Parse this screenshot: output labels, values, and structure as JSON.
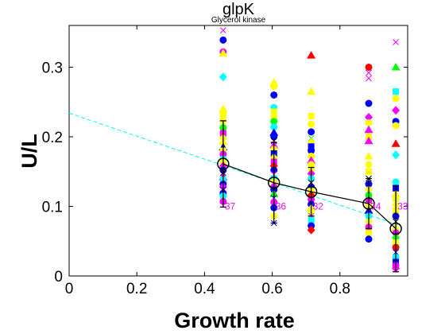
{
  "chart_data": {
    "type": "scatter",
    "title": "glpK",
    "subtitle": "Glycerol kinase",
    "xlabel": "Growth rate",
    "ylabel": "U/L",
    "xlim": [
      0,
      1.0
    ],
    "ylim": [
      0,
      0.36
    ],
    "x_ticks": [
      0,
      0.2,
      0.4,
      0.6,
      0.8
    ],
    "x_tick_labels": [
      "0",
      "0.2",
      "0.4",
      "0.6",
      "0.8"
    ],
    "y_ticks": [
      0,
      0.1,
      0.2,
      0.3
    ],
    "y_tick_labels": [
      "0",
      "0.1",
      "0.2",
      "0.3"
    ],
    "grid": false,
    "legend": "none",
    "trend_line": {
      "style": "dashed",
      "color": "#00ffff",
      "points": [
        [
          0,
          0.234
        ],
        [
          0.98,
          0.072
        ]
      ]
    },
    "mean_series": {
      "style": "solid",
      "color": "#000000",
      "marker": "circle-open",
      "x": [
        0.455,
        0.605,
        0.715,
        0.885,
        0.965
      ],
      "y": [
        0.161,
        0.134,
        0.121,
        0.104,
        0.068
      ],
      "error": [
        0.062,
        0.058,
        0.035,
        0.036,
        0.062
      ]
    },
    "group_counts": [
      {
        "x": 0.455,
        "label": "37"
      },
      {
        "x": 0.605,
        "label": "36"
      },
      {
        "x": 0.715,
        "label": "32"
      },
      {
        "x": 0.885,
        "label": "34"
      },
      {
        "x": 0.965,
        "label": "33"
      }
    ],
    "series": [
      {
        "x": 0.455,
        "points": [
          {
            "y": 0.353,
            "marker": "x",
            "color": "#ff00ff"
          },
          {
            "y": 0.339,
            "marker": "circle",
            "color": "#0000ff"
          },
          {
            "y": 0.322,
            "marker": "circle",
            "color": "#ff00ff"
          },
          {
            "y": 0.32,
            "marker": "triangle",
            "color": "#ffff00"
          },
          {
            "y": 0.286,
            "marker": "diamond",
            "color": "#00ffff"
          },
          {
            "y": 0.24,
            "marker": "triangle",
            "color": "#ffff00"
          },
          {
            "y": 0.234,
            "marker": "circle",
            "color": "#ffff00"
          },
          {
            "y": 0.229,
            "marker": "square",
            "color": "#ffff00"
          },
          {
            "y": 0.222,
            "marker": "diamond",
            "color": "#ffff00"
          },
          {
            "y": 0.213,
            "marker": "circle",
            "color": "#00ff00"
          },
          {
            "y": 0.205,
            "marker": "square",
            "color": "#ff00ff"
          },
          {
            "y": 0.198,
            "marker": "diamond",
            "color": "#ffff00"
          },
          {
            "y": 0.19,
            "marker": "circle",
            "color": "#ffff00"
          },
          {
            "y": 0.185,
            "marker": "triangle",
            "color": "#0000ff"
          },
          {
            "y": 0.18,
            "marker": "square",
            "color": "#ffff00"
          },
          {
            "y": 0.175,
            "marker": "circle",
            "color": "#ff00ff"
          },
          {
            "y": 0.168,
            "marker": "circle",
            "color": "#00ffff"
          },
          {
            "y": 0.164,
            "marker": "square",
            "color": "#ffff00"
          },
          {
            "y": 0.158,
            "marker": "diamond",
            "color": "#ff00ff"
          },
          {
            "y": 0.152,
            "marker": "circle",
            "color": "#0000ff"
          },
          {
            "y": 0.148,
            "marker": "x",
            "color": "#000000"
          },
          {
            "y": 0.142,
            "marker": "triangle",
            "color": "#ff00ff"
          },
          {
            "y": 0.138,
            "marker": "square",
            "color": "#00ffff"
          },
          {
            "y": 0.132,
            "marker": "circle",
            "color": "#0000ff"
          },
          {
            "y": 0.128,
            "marker": "diamond",
            "color": "#ff00ff"
          },
          {
            "y": 0.124,
            "marker": "x",
            "color": "#0000ff"
          },
          {
            "y": 0.119,
            "marker": "circle",
            "color": "#0000ff"
          },
          {
            "y": 0.115,
            "marker": "circle",
            "color": "#00ffff"
          },
          {
            "y": 0.107,
            "marker": "circle",
            "color": "#ff00ff"
          }
        ]
      },
      {
        "x": 0.605,
        "points": [
          {
            "y": 0.278,
            "marker": "triangle",
            "color": "#ffff00"
          },
          {
            "y": 0.272,
            "marker": "circle",
            "color": "#ffff00"
          },
          {
            "y": 0.26,
            "marker": "circle",
            "color": "#0000ff"
          },
          {
            "y": 0.242,
            "marker": "circle",
            "color": "#00ffff"
          },
          {
            "y": 0.236,
            "marker": "square",
            "color": "#ffff00"
          },
          {
            "y": 0.228,
            "marker": "circle",
            "color": "#ffff00"
          },
          {
            "y": 0.222,
            "marker": "circle",
            "color": "#00ff00"
          },
          {
            "y": 0.214,
            "marker": "circle",
            "color": "#00ffff"
          },
          {
            "y": 0.206,
            "marker": "triangle",
            "color": "#0000ff"
          },
          {
            "y": 0.2,
            "marker": "circle",
            "color": "#0000ff"
          },
          {
            "y": 0.194,
            "marker": "x",
            "color": "#000000"
          },
          {
            "y": 0.188,
            "marker": "triangle",
            "color": "#ff00ff"
          },
          {
            "y": 0.182,
            "marker": "circle",
            "color": "#ffff00"
          },
          {
            "y": 0.176,
            "marker": "square",
            "color": "#0000ff"
          },
          {
            "y": 0.17,
            "marker": "diamond",
            "color": "#ffff00"
          },
          {
            "y": 0.164,
            "marker": "square",
            "color": "#ff00ff"
          },
          {
            "y": 0.158,
            "marker": "diamond",
            "color": "#ff0000"
          },
          {
            "y": 0.152,
            "marker": "circle",
            "color": "#0000ff"
          },
          {
            "y": 0.146,
            "marker": "x",
            "color": "#ff00ff"
          },
          {
            "y": 0.14,
            "marker": "square",
            "color": "#00ffff"
          },
          {
            "y": 0.135,
            "marker": "circle",
            "color": "#ffff00"
          },
          {
            "y": 0.129,
            "marker": "diamond",
            "color": "#ff00ff"
          },
          {
            "y": 0.124,
            "marker": "circle",
            "color": "#0000ff"
          },
          {
            "y": 0.118,
            "marker": "triangle",
            "color": "#00ff00"
          },
          {
            "y": 0.112,
            "marker": "x",
            "color": "#0000ff"
          },
          {
            "y": 0.106,
            "marker": "circle",
            "color": "#ff00ff"
          },
          {
            "y": 0.098,
            "marker": "circle",
            "color": "#0000ff"
          },
          {
            "y": 0.086,
            "marker": "circle",
            "color": "#ffff00"
          },
          {
            "y": 0.076,
            "marker": "x",
            "color": "#0000ff"
          }
        ]
      },
      {
        "x": 0.715,
        "points": [
          {
            "y": 0.317,
            "marker": "triangle",
            "color": "#ff0000"
          },
          {
            "y": 0.265,
            "marker": "triangle",
            "color": "#ffff00"
          },
          {
            "y": 0.23,
            "marker": "square",
            "color": "#ffff00"
          },
          {
            "y": 0.218,
            "marker": "circle",
            "color": "#ffff00"
          },
          {
            "y": 0.207,
            "marker": "circle",
            "color": "#0000ff"
          },
          {
            "y": 0.198,
            "marker": "x",
            "color": "#00ff00"
          },
          {
            "y": 0.192,
            "marker": "diamond",
            "color": "#ffff00"
          },
          {
            "y": 0.186,
            "marker": "square",
            "color": "#0000ff"
          },
          {
            "y": 0.18,
            "marker": "circle",
            "color": "#0000ff"
          },
          {
            "y": 0.172,
            "marker": "circle",
            "color": "#ffff00"
          },
          {
            "y": 0.166,
            "marker": "triangle",
            "color": "#ff00ff"
          },
          {
            "y": 0.16,
            "marker": "circle",
            "color": "#ffff00"
          },
          {
            "y": 0.154,
            "marker": "square",
            "color": "#ffff00"
          },
          {
            "y": 0.147,
            "marker": "diamond",
            "color": "#ff00ff"
          },
          {
            "y": 0.14,
            "marker": "circle",
            "color": "#00ffff"
          },
          {
            "y": 0.134,
            "marker": "x",
            "color": "#000000"
          },
          {
            "y": 0.128,
            "marker": "circle",
            "color": "#0000ff"
          },
          {
            "y": 0.122,
            "marker": "square",
            "color": "#ffff00"
          },
          {
            "y": 0.116,
            "marker": "diamond",
            "color": "#ff0000"
          },
          {
            "y": 0.11,
            "marker": "circle",
            "color": "#ff00ff"
          },
          {
            "y": 0.103,
            "marker": "circle",
            "color": "#0000ff"
          },
          {
            "y": 0.098,
            "marker": "triangle",
            "color": "#ffff00"
          },
          {
            "y": 0.092,
            "marker": "circle",
            "color": "#ffff00"
          },
          {
            "y": 0.086,
            "marker": "x",
            "color": "#ff00ff"
          },
          {
            "y": 0.08,
            "marker": "square",
            "color": "#00ffff"
          },
          {
            "y": 0.072,
            "marker": "circle",
            "color": "#0000ff"
          },
          {
            "y": 0.066,
            "marker": "diamond",
            "color": "#ff0000"
          }
        ]
      },
      {
        "x": 0.885,
        "points": [
          {
            "y": 0.3,
            "marker": "circle",
            "color": "#ff0000"
          },
          {
            "y": 0.292,
            "marker": "x",
            "color": "#ff00ff"
          },
          {
            "y": 0.284,
            "marker": "x",
            "color": "#ff00ff"
          },
          {
            "y": 0.248,
            "marker": "circle",
            "color": "#0000ff"
          },
          {
            "y": 0.228,
            "marker": "diamond",
            "color": "#ff00ff"
          },
          {
            "y": 0.22,
            "marker": "circle",
            "color": "#ffff00"
          },
          {
            "y": 0.21,
            "marker": "triangle",
            "color": "#ff00ff"
          },
          {
            "y": 0.2,
            "marker": "square",
            "color": "#ffff00"
          },
          {
            "y": 0.194,
            "marker": "triangle",
            "color": "#ff00ff"
          },
          {
            "y": 0.172,
            "marker": "triangle",
            "color": "#ffff00"
          },
          {
            "y": 0.16,
            "marker": "circle",
            "color": "#ffff00"
          },
          {
            "y": 0.15,
            "marker": "square",
            "color": "#ffff00"
          },
          {
            "y": 0.14,
            "marker": "x",
            "color": "#000000"
          },
          {
            "y": 0.132,
            "marker": "circle",
            "color": "#0000ff"
          },
          {
            "y": 0.124,
            "marker": "diamond",
            "color": "#ffff00"
          },
          {
            "y": 0.116,
            "marker": "circle",
            "color": "#00ff00"
          },
          {
            "y": 0.108,
            "marker": "square",
            "color": "#ff00ff"
          },
          {
            "y": 0.1,
            "marker": "circle",
            "color": "#ffff00"
          },
          {
            "y": 0.094,
            "marker": "triangle",
            "color": "#0000ff"
          },
          {
            "y": 0.086,
            "marker": "circle",
            "color": "#00ffff"
          },
          {
            "y": 0.078,
            "marker": "diamond",
            "color": "#ffff00"
          },
          {
            "y": 0.07,
            "marker": "circle",
            "color": "#ff00ff"
          },
          {
            "y": 0.062,
            "marker": "square",
            "color": "#ffff00"
          },
          {
            "y": 0.053,
            "marker": "circle",
            "color": "#0000ff"
          }
        ]
      },
      {
        "x": 0.965,
        "points": [
          {
            "y": 0.336,
            "marker": "x",
            "color": "#ff00ff"
          },
          {
            "y": 0.3,
            "marker": "triangle",
            "color": "#00ff00"
          },
          {
            "y": 0.265,
            "marker": "square",
            "color": "#00ffff"
          },
          {
            "y": 0.255,
            "marker": "circle",
            "color": "#ffff00"
          },
          {
            "y": 0.238,
            "marker": "diamond",
            "color": "#ff00ff"
          },
          {
            "y": 0.222,
            "marker": "circle",
            "color": "#0000ff"
          },
          {
            "y": 0.216,
            "marker": "circle",
            "color": "#ffff00"
          },
          {
            "y": 0.19,
            "marker": "triangle",
            "color": "#ff0000"
          },
          {
            "y": 0.174,
            "marker": "diamond",
            "color": "#00ffff"
          },
          {
            "y": 0.135,
            "marker": "circle",
            "color": "#00ffff"
          },
          {
            "y": 0.126,
            "marker": "square",
            "color": "#0000ff"
          },
          {
            "y": 0.118,
            "marker": "triangle",
            "color": "#ffff00"
          },
          {
            "y": 0.11,
            "marker": "circle",
            "color": "#ffff00"
          },
          {
            "y": 0.102,
            "marker": "diamond",
            "color": "#ffff00"
          },
          {
            "y": 0.094,
            "marker": "square",
            "color": "#ffff00"
          },
          {
            "y": 0.086,
            "marker": "circle",
            "color": "#0000ff"
          },
          {
            "y": 0.078,
            "marker": "x",
            "color": "#000000"
          },
          {
            "y": 0.07,
            "marker": "triangle",
            "color": "#ffff00"
          },
          {
            "y": 0.062,
            "marker": "circle",
            "color": "#ff00ff"
          },
          {
            "y": 0.055,
            "marker": "diamond",
            "color": "#00ff00"
          },
          {
            "y": 0.048,
            "marker": "square",
            "color": "#ffff00"
          },
          {
            "y": 0.041,
            "marker": "circle",
            "color": "#ff0000"
          },
          {
            "y": 0.034,
            "marker": "x",
            "color": "#0000ff"
          },
          {
            "y": 0.027,
            "marker": "circle",
            "color": "#00ffff"
          },
          {
            "y": 0.02,
            "marker": "square",
            "color": "#0000ff"
          },
          {
            "y": 0.015,
            "marker": "circle",
            "color": "#ff00ff"
          },
          {
            "y": 0.011,
            "marker": "diamond",
            "color": "#ff00ff"
          }
        ]
      }
    ]
  }
}
